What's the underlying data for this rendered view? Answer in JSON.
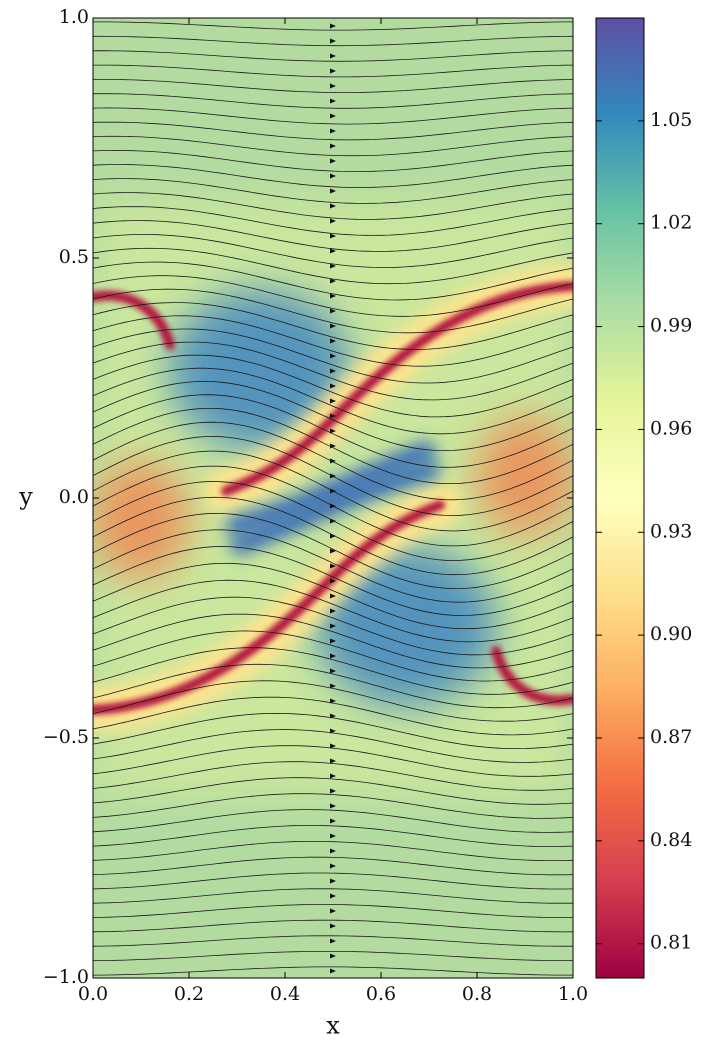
{
  "chart_data": {
    "type": "streamplot",
    "xlabel": "x",
    "ylabel": "y",
    "xlim": [
      0,
      1
    ],
    "ylim": [
      -1,
      1
    ],
    "xticks": [
      {
        "value": 0,
        "label": "0.0"
      },
      {
        "value": 0.2,
        "label": "0.2"
      },
      {
        "value": 0.4,
        "label": "0.4"
      },
      {
        "value": 0.6,
        "label": "0.6"
      },
      {
        "value": 0.8,
        "label": "0.8"
      },
      {
        "value": 1,
        "label": "1.0"
      }
    ],
    "yticks": [
      {
        "value": -1,
        "label": "−1.0"
      },
      {
        "value": -0.5,
        "label": "−0.5"
      },
      {
        "value": 0,
        "label": "0.0"
      },
      {
        "value": 0.5,
        "label": "0.5"
      },
      {
        "value": 1,
        "label": "1.0"
      }
    ],
    "clim": [
      0.8,
      1.08
    ],
    "cticks": [
      0.81,
      0.84,
      0.87,
      {
        "value": 0.9,
        "label": "0.90"
      },
      0.93,
      0.96,
      0.99,
      1.02,
      1.05
    ],
    "colormap": [
      "#9e0142",
      "#d53e4f",
      "#f46d43",
      "#fdae61",
      "#fee08b",
      "#ffffbf",
      "#e6f598",
      "#abdda4",
      "#66c2a5",
      "#3288bd",
      "#5e4fa2"
    ]
  }
}
